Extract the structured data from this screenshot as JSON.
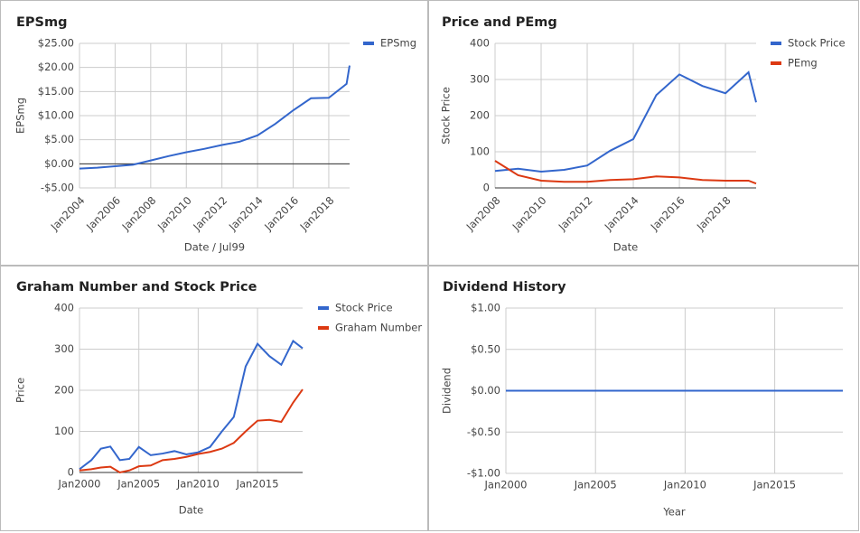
{
  "chart_data": [
    {
      "type": "line",
      "title": "EPSmg",
      "xlabel": "Date / Jul99",
      "ylabel": "EPSmg",
      "legend": "right",
      "grid": true,
      "x": [
        2004,
        2005,
        2006,
        2007,
        2008,
        2009,
        2010,
        2011,
        2012,
        2013,
        2014,
        2015,
        2016,
        2017,
        2018,
        2019,
        2019.17
      ],
      "series": [
        {
          "name": "EPSmg",
          "color": "#3366cc",
          "values": [
            -1,
            -0.8,
            -0.5,
            -0.2,
            0.7,
            1.6,
            2.4,
            3.1,
            3.9,
            4.6,
            5.9,
            8.3,
            11.1,
            13.6,
            13.7,
            16.6,
            20.4
          ]
        }
      ],
      "xlim": [
        2004,
        2019.17
      ],
      "xticks": [
        {
          "value": 2004,
          "label": "Jan2004"
        },
        {
          "value": 2006,
          "label": "Jan2006"
        },
        {
          "value": 2008,
          "label": "Jan2008"
        },
        {
          "value": 2010,
          "label": "Jan2010"
        },
        {
          "value": 2012,
          "label": "Jan2012"
        },
        {
          "value": 2014,
          "label": "Jan2014"
        },
        {
          "value": 2016,
          "label": "Jan2016"
        },
        {
          "value": 2018,
          "label": "Jan2018"
        }
      ],
      "ylim": [
        -5,
        25
      ],
      "yticks": [
        {
          "value": -5,
          "label": "-$5.00"
        },
        {
          "value": 0,
          "label": "$0.00"
        },
        {
          "value": 5,
          "label": "$5.00"
        },
        {
          "value": 10,
          "label": "$10.00"
        },
        {
          "value": 15,
          "label": "$15.00"
        },
        {
          "value": 20,
          "label": "$20.00"
        },
        {
          "value": 25,
          "label": "$25.00"
        }
      ]
    },
    {
      "type": "line",
      "title": "Price and PEmg",
      "xlabel": "Date",
      "ylabel": "Stock Price",
      "legend": "right",
      "grid": true,
      "x": [
        2008,
        2009,
        2010,
        2011,
        2012,
        2013,
        2014,
        2015,
        2016,
        2017,
        2018,
        2019,
        2019.33
      ],
      "series": [
        {
          "name": "Stock Price",
          "color": "#3366cc",
          "values": [
            47,
            53,
            45,
            50,
            62,
            103,
            135,
            257,
            314,
            282,
            262,
            320,
            237
          ]
        },
        {
          "name": "PEmg",
          "color": "#dc3912",
          "values": [
            75,
            35,
            20,
            17,
            17,
            22,
            24,
            32,
            29,
            22,
            20,
            20,
            12
          ]
        }
      ],
      "xlim": [
        2008,
        2019.33
      ],
      "xticks": [
        {
          "value": 2008,
          "label": "Jan2008"
        },
        {
          "value": 2010,
          "label": "Jan2010"
        },
        {
          "value": 2012,
          "label": "Jan2012"
        },
        {
          "value": 2014,
          "label": "Jan2014"
        },
        {
          "value": 2016,
          "label": "Jan2016"
        },
        {
          "value": 2018,
          "label": "Jan2018"
        }
      ],
      "ylim": [
        0,
        400
      ],
      "yticks": [
        0,
        100,
        200,
        300,
        400
      ]
    },
    {
      "type": "line",
      "title": "Graham Number and Stock Price",
      "xlabel": "Date",
      "ylabel": "Price",
      "legend": "right",
      "grid": true,
      "x": [
        2000,
        2001,
        2001.8,
        2002.6,
        2003.4,
        2004.2,
        2005,
        2006,
        2007,
        2008,
        2009,
        2010,
        2011,
        2012,
        2013,
        2014,
        2015,
        2016,
        2017,
        2018,
        2018.8
      ],
      "series": [
        {
          "name": "Stock Price",
          "color": "#3366cc",
          "values": [
            8,
            30,
            58,
            63,
            30,
            33,
            62,
            42,
            46,
            52,
            44,
            49,
            62,
            100,
            135,
            258,
            313,
            283,
            262,
            320,
            302
          ]
        },
        {
          "name": "Graham Number",
          "color": "#dc3912",
          "values": [
            5,
            8,
            12,
            14,
            0,
            5,
            15,
            17,
            30,
            33,
            38,
            45,
            50,
            58,
            72,
            100,
            126,
            128,
            123,
            170,
            202
          ]
        }
      ],
      "xlim": [
        2000,
        2018.8
      ],
      "xticks": [
        {
          "value": 2000,
          "label": "Jan2000"
        },
        {
          "value": 2005,
          "label": "Jan2005"
        },
        {
          "value": 2010,
          "label": "Jan2010"
        },
        {
          "value": 2015,
          "label": "Jan2015"
        }
      ],
      "ylim": [
        0,
        400
      ],
      "yticks": [
        0,
        100,
        200,
        300,
        400
      ]
    },
    {
      "type": "line",
      "title": "Dividend History",
      "xlabel": "Year",
      "ylabel": "Dividend",
      "grid": true,
      "x": [
        2000,
        2018.8
      ],
      "series": [
        {
          "color": "#3366cc",
          "values": [
            0,
            0
          ]
        }
      ],
      "xlim": [
        2000,
        2018.8
      ],
      "xticks": [
        {
          "value": 2000,
          "label": "Jan2000"
        },
        {
          "value": 2005,
          "label": "Jan2005"
        },
        {
          "value": 2010,
          "label": "Jan2010"
        },
        {
          "value": 2015,
          "label": "Jan2015"
        }
      ],
      "ylim": [
        -1,
        1
      ],
      "yticks": [
        {
          "value": -1,
          "label": "-$1.00"
        },
        {
          "value": -0.5,
          "label": "-$0.50"
        },
        {
          "value": 0,
          "label": "$0.00"
        },
        {
          "value": 0.5,
          "label": "$0.50"
        },
        {
          "value": 1,
          "label": "$1.00"
        }
      ]
    }
  ]
}
